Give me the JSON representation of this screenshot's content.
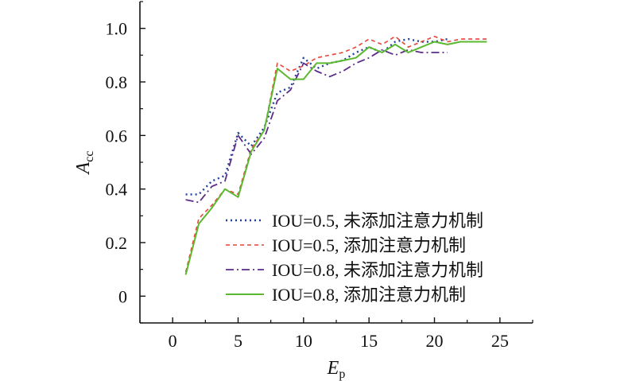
{
  "chart_data": {
    "type": "line",
    "title": "",
    "xlabel": {
      "main": "E",
      "sub": "p"
    },
    "ylabel": {
      "main": "A",
      "sub": "cc"
    },
    "xlim": [
      -2.5,
      27.5
    ],
    "ylim": [
      -0.1,
      1.1
    ],
    "xticks": [
      0,
      5,
      10,
      15,
      20,
      25
    ],
    "yticks": [
      0,
      0.2,
      0.4,
      0.6,
      0.8,
      1.0
    ],
    "xtick_labels": [
      "0",
      "5",
      "10",
      "15",
      "20",
      "25"
    ],
    "ytick_labels": [
      "0",
      "0.2",
      "0.4",
      "0.6",
      "0.8",
      "1.0"
    ],
    "grid": false,
    "legend_position": "bottom-right",
    "series": [
      {
        "name": "IOU=0.5, 未添加注意力机制",
        "color": "#1f3f9a",
        "dash": "dot",
        "x": [
          1,
          2,
          3,
          4,
          5,
          6,
          7,
          8,
          9,
          10,
          11,
          12,
          13,
          14,
          15,
          16,
          17,
          18,
          19,
          20,
          21
        ],
        "y": [
          0.38,
          0.38,
          0.43,
          0.45,
          0.61,
          0.56,
          0.63,
          0.76,
          0.78,
          0.89,
          0.85,
          0.87,
          0.88,
          0.91,
          0.93,
          0.91,
          0.95,
          0.96,
          0.95,
          0.95,
          0.96
        ]
      },
      {
        "name": "IOU=0.5, 添加注意力机制",
        "color": "#e8443a",
        "dash": "dash",
        "x": [
          1,
          2,
          3,
          4,
          5,
          6,
          7,
          8,
          9,
          10,
          11,
          12,
          13,
          14,
          15,
          16,
          17,
          18,
          19,
          20,
          21,
          22,
          23,
          24
        ],
        "y": [
          0.09,
          0.29,
          0.34,
          0.4,
          0.38,
          0.55,
          0.62,
          0.87,
          0.84,
          0.86,
          0.89,
          0.9,
          0.91,
          0.93,
          0.96,
          0.94,
          0.97,
          0.93,
          0.95,
          0.97,
          0.95,
          0.96,
          0.96,
          0.96
        ]
      },
      {
        "name": "IOU=0.8, 未添加注意力机制",
        "color": "#5b2d86",
        "dash": "dashdot",
        "x": [
          1,
          2,
          3,
          4,
          5,
          6,
          7,
          8,
          9,
          10,
          11,
          12,
          13,
          14,
          15,
          16,
          17,
          18,
          19,
          20,
          21
        ],
        "y": [
          0.36,
          0.35,
          0.41,
          0.43,
          0.6,
          0.53,
          0.59,
          0.73,
          0.77,
          0.87,
          0.84,
          0.82,
          0.84,
          0.87,
          0.89,
          0.92,
          0.9,
          0.92,
          0.91,
          0.91,
          0.91
        ]
      },
      {
        "name": "IOU=0.8, 添加注意力机制",
        "color": "#5cb82f",
        "dash": "solid",
        "x": [
          1,
          2,
          3,
          4,
          5,
          6,
          7,
          8,
          9,
          10,
          11,
          12,
          13,
          14,
          15,
          16,
          17,
          18,
          19,
          20,
          21,
          22,
          23,
          24
        ],
        "y": [
          0.08,
          0.27,
          0.33,
          0.4,
          0.37,
          0.54,
          0.62,
          0.85,
          0.81,
          0.81,
          0.87,
          0.87,
          0.88,
          0.89,
          0.93,
          0.91,
          0.94,
          0.91,
          0.93,
          0.95,
          0.94,
          0.95,
          0.95,
          0.95
        ]
      }
    ]
  }
}
